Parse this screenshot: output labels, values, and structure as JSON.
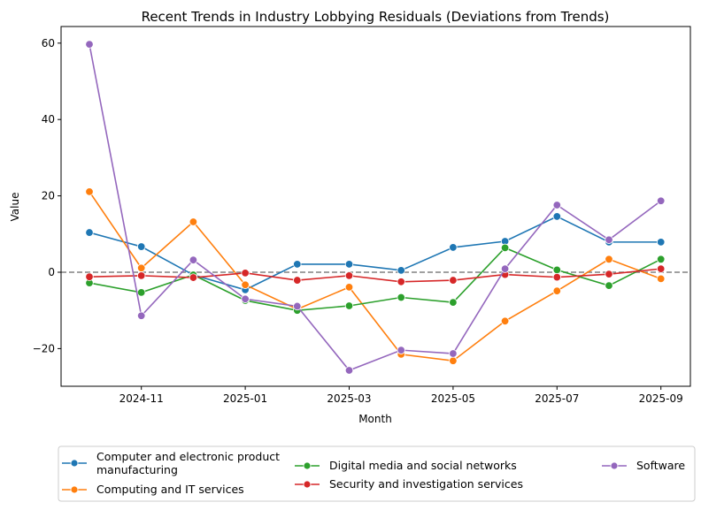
{
  "chart_data": {
    "type": "line",
    "title": "Recent Trends in Industry Lobbying Residuals (Deviations from Trends)",
    "xlabel": "Month",
    "ylabel": "Value",
    "x": [
      "2024-10",
      "2024-11",
      "2024-12",
      "2025-01",
      "2025-02",
      "2025-03",
      "2025-04",
      "2025-05",
      "2025-06",
      "2025-07",
      "2025-08",
      "2025-09"
    ],
    "xticks": [
      "2024-11",
      "2025-01",
      "2025-03",
      "2025-05",
      "2025-07",
      "2025-09"
    ],
    "yticks": [
      -20,
      0,
      20,
      40,
      60
    ],
    "ytick_labels": [
      "−20",
      "0",
      "20",
      "40",
      "60"
    ],
    "ylim": [
      -30,
      64.4
    ],
    "reference_line": {
      "y": 0,
      "style": "dashed",
      "color": "#808080"
    },
    "grid": false,
    "legend_placement": "bottom-center, below plot, 3 columns",
    "series": [
      {
        "name": "Computer and electronic product manufacturing",
        "name_lines": [
          "Computer and electronic product",
          "manufacturing"
        ],
        "color": "#1f77b4",
        "values": [
          10.4,
          6.7,
          -0.7,
          -4.6,
          2.1,
          2.1,
          0.5,
          6.5,
          8.1,
          14.6,
          7.9,
          7.9
        ]
      },
      {
        "name": "Computing and IT services",
        "name_lines": [
          "Computing and IT services"
        ],
        "color": "#ff7f0e",
        "values": [
          21.1,
          1.1,
          13.2,
          -3.3,
          -9.7,
          -3.9,
          -21.5,
          -23.2,
          -12.8,
          -4.9,
          3.4,
          -1.7
        ]
      },
      {
        "name": "Digital media and social networks",
        "name_lines": [
          "Digital media and social networks"
        ],
        "color": "#2ca02c",
        "values": [
          -2.8,
          -5.3,
          -0.7,
          -7.4,
          -10.0,
          -8.8,
          -6.6,
          -7.9,
          6.4,
          0.6,
          -3.5,
          3.4
        ]
      },
      {
        "name": "Security and investigation services",
        "name_lines": [
          "Security and investigation services"
        ],
        "color": "#d62728",
        "values": [
          -1.2,
          -0.9,
          -1.4,
          -0.2,
          -2.1,
          -0.9,
          -2.5,
          -2.1,
          -0.6,
          -1.3,
          -0.5,
          0.9
        ]
      },
      {
        "name": "Software",
        "name_lines": [
          "Software"
        ],
        "color": "#9467bd",
        "values": [
          59.7,
          -11.4,
          3.2,
          -7.0,
          -8.9,
          -25.7,
          -20.4,
          -21.3,
          0.9,
          17.6,
          8.5,
          18.7
        ]
      }
    ]
  }
}
